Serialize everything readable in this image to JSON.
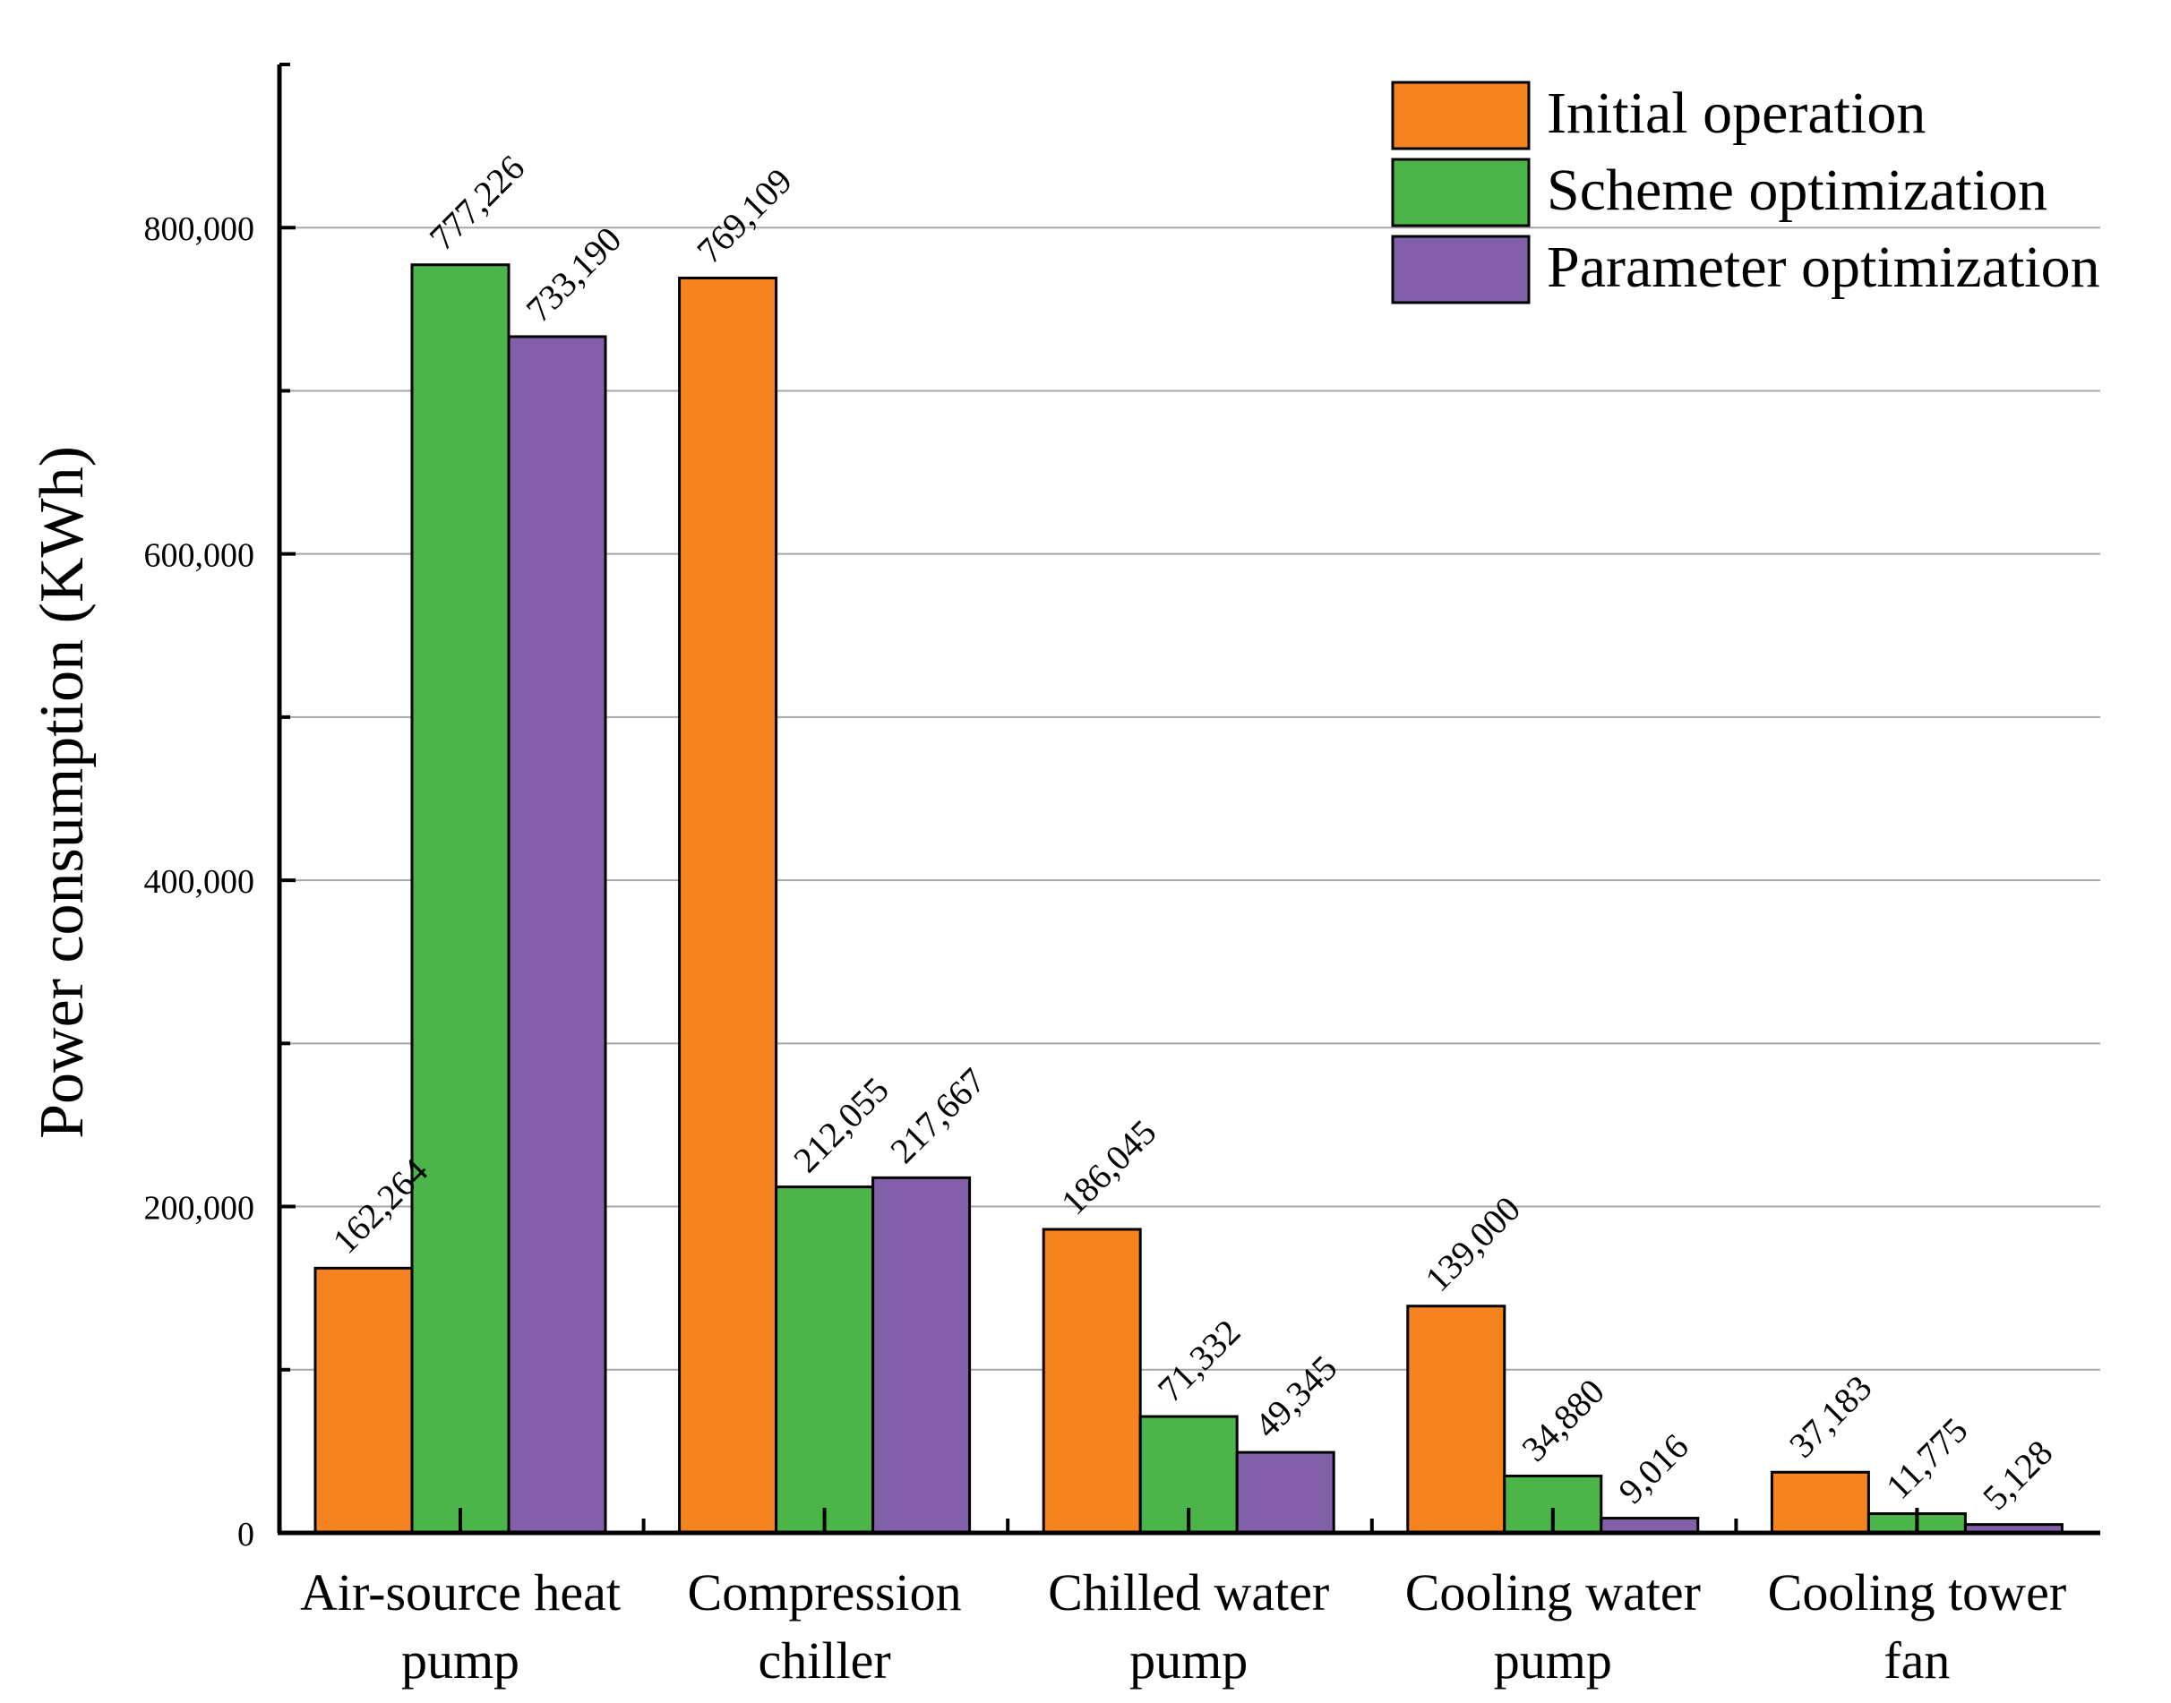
{
  "chart_data": {
    "type": "bar",
    "title": "",
    "xlabel": "",
    "ylabel": "Power consumption (KWh)",
    "ylim": [
      0,
      900000
    ],
    "y_ticks": [
      0,
      200000,
      400000,
      600000,
      800000
    ],
    "y_tick_labels": [
      "0",
      "200,000",
      "400,000",
      "600,000",
      "800,000"
    ],
    "grid": true,
    "legend_position": "top-right",
    "categories": [
      [
        "Air-source heat",
        "pump"
      ],
      [
        "Compression",
        "chiller"
      ],
      [
        "Chilled water",
        "pump"
      ],
      [
        "Cooling water",
        "pump"
      ],
      [
        "Cooling tower",
        "fan"
      ]
    ],
    "series": [
      {
        "name": "Initial operation",
        "color": "#f5831f",
        "values": [
          162264,
          769109,
          186045,
          139000,
          37183
        ],
        "labels": [
          "162,264",
          "769,109",
          "186,045",
          "139,000",
          "37,183"
        ]
      },
      {
        "name": "Scheme optimization",
        "color": "#4cb54a",
        "values": [
          777226,
          212055,
          71332,
          34880,
          11775
        ],
        "labels": [
          "777,226",
          "212,055",
          "71,332",
          "34,880",
          "11,775"
        ]
      },
      {
        "name": "Parameter optimization",
        "color": "#8160a9",
        "values": [
          733190,
          217667,
          49345,
          9016,
          5128
        ],
        "labels": [
          "733,190",
          "217,667",
          "49,345",
          "9,016",
          "5,128"
        ]
      }
    ]
  }
}
